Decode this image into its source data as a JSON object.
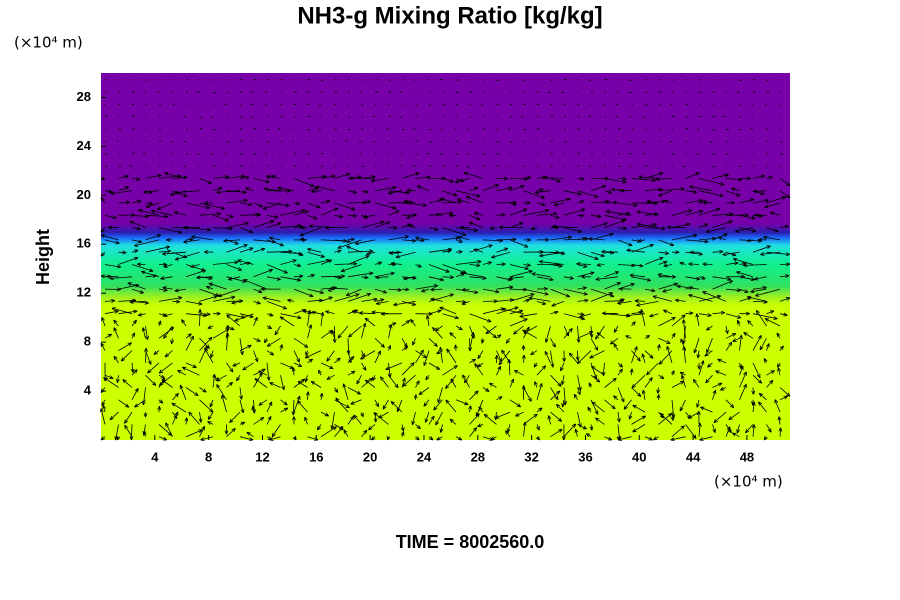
{
  "chart_data": {
    "type": "field",
    "title": "NH3-g Mixing Ratio [kg/kg]",
    "y_label": "Height",
    "x_unit_label": "(×10⁴ m)",
    "y_unit_label": "(×10⁴ m)",
    "annotation": "TIME = 8002560.0",
    "xlim": [
      0,
      51.2
    ],
    "xticks": [
      4,
      8,
      12,
      16,
      20,
      24,
      28,
      32,
      36,
      40,
      44,
      48
    ],
    "ylim": [
      0,
      30
    ],
    "yticks": [
      4,
      8,
      12,
      16,
      20,
      24,
      28
    ]
  }
}
